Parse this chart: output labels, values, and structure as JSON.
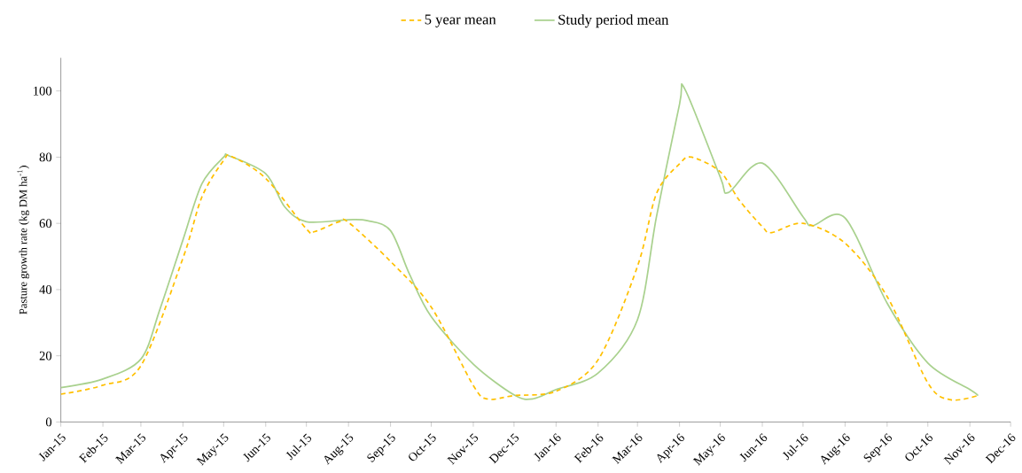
{
  "chart_data": {
    "type": "line",
    "ylabel": "Pasture growth rate (kg DM ha$^{-1}$)",
    "xlim": [
      "2015-01-01",
      "2016-12-01"
    ],
    "ylim": [
      0,
      110
    ],
    "yticks": [
      0,
      20,
      40,
      60,
      80,
      100
    ],
    "xticks": [
      {
        "value": "2015-01-01",
        "label": "Jan-15"
      },
      {
        "value": "2015-02-01",
        "label": "Feb-15"
      },
      {
        "value": "2015-03-01",
        "label": "Mar-15"
      },
      {
        "value": "2015-04-01",
        "label": "Apr-15"
      },
      {
        "value": "2015-05-01",
        "label": "May-15"
      },
      {
        "value": "2015-06-01",
        "label": "Jun-15"
      },
      {
        "value": "2015-07-01",
        "label": "Jul-15"
      },
      {
        "value": "2015-08-01",
        "label": "Aug-15"
      },
      {
        "value": "2015-09-01",
        "label": "Sep-15"
      },
      {
        "value": "2015-10-01",
        "label": "Oct-15"
      },
      {
        "value": "2015-11-01",
        "label": "Nov-15"
      },
      {
        "value": "2015-12-01",
        "label": "Dec-15"
      },
      {
        "value": "2016-01-01",
        "label": "Jan-16"
      },
      {
        "value": "2016-02-01",
        "label": "Feb-16"
      },
      {
        "value": "2016-03-01",
        "label": "Mar-16"
      },
      {
        "value": "2016-04-01",
        "label": "Apr-16"
      },
      {
        "value": "2016-05-01",
        "label": "May-16"
      },
      {
        "value": "2016-06-01",
        "label": "Jun-16"
      },
      {
        "value": "2016-07-01",
        "label": "Jul-16"
      },
      {
        "value": "2016-08-01",
        "label": "Aug-16"
      },
      {
        "value": "2016-09-01",
        "label": "Sep-16"
      },
      {
        "value": "2016-10-01",
        "label": "Oct-16"
      },
      {
        "value": "2016-11-01",
        "label": "Nov-16"
      },
      {
        "value": "2016-12-01",
        "label": "Dec-16"
      }
    ],
    "legend": "top",
    "grid": false,
    "marker": "none",
    "series": [
      {
        "name": "5 year mean",
        "color": "#ffc000",
        "line_style": "dashed",
        "x": [
          "2015-01-01",
          "2015-02-01",
          "2015-03-01",
          "2015-04-01",
          "2015-04-15",
          "2015-05-01",
          "2015-05-07",
          "2015-06-01",
          "2015-07-01",
          "2015-07-07",
          "2015-07-25",
          "2015-08-01",
          "2015-09-01",
          "2015-10-01",
          "2015-11-01",
          "2015-11-12",
          "2015-12-01",
          "2016-01-01",
          "2016-02-01",
          "2016-03-01",
          "2016-03-15",
          "2016-04-01",
          "2016-04-10",
          "2016-05-01",
          "2016-05-15",
          "2016-06-01",
          "2016-06-08",
          "2016-07-01",
          "2016-08-01",
          "2016-09-01",
          "2016-10-01",
          "2016-10-18",
          "2016-11-07"
        ],
        "values": [
          8.4,
          11.1,
          17,
          49.5,
          68,
          79,
          80.2,
          73.6,
          58.3,
          57.5,
          60.5,
          60.3,
          48.5,
          34.7,
          11,
          6.9,
          8,
          9.3,
          18.8,
          47,
          69,
          78,
          80,
          75.6,
          67,
          59,
          57.2,
          60,
          54,
          37.9,
          11.8,
          6.7,
          8
        ]
      },
      {
        "name": "Study period mean",
        "color": "#a9d18e",
        "line_style": "solid",
        "x": [
          "2015-01-01",
          "2015-02-01",
          "2015-03-01",
          "2015-03-15",
          "2015-04-01",
          "2015-04-15",
          "2015-05-01",
          "2015-05-05",
          "2015-06-01",
          "2015-06-15",
          "2015-07-01",
          "2015-08-01",
          "2015-08-15",
          "2015-09-01",
          "2015-09-15",
          "2015-10-01",
          "2015-11-01",
          "2015-12-01",
          "2015-12-15",
          "2016-01-01",
          "2016-02-01",
          "2016-03-01",
          "2016-03-15",
          "2016-04-01",
          "2016-04-05",
          "2016-05-01",
          "2016-05-07",
          "2016-06-01",
          "2016-07-01",
          "2016-07-08",
          "2016-08-01",
          "2016-09-01",
          "2016-10-01",
          "2016-11-01",
          "2016-11-07"
        ],
        "values": [
          10.4,
          13,
          19,
          34,
          55,
          72,
          80,
          80.4,
          75,
          65,
          60.5,
          61.1,
          60.8,
          57.8,
          44.6,
          31.8,
          17.5,
          8.2,
          7,
          9.8,
          14.8,
          30.9,
          62,
          96,
          100.5,
          74,
          69.3,
          78.2,
          62,
          59.3,
          61.6,
          35.9,
          17.8,
          9.8,
          8
        ]
      }
    ]
  }
}
